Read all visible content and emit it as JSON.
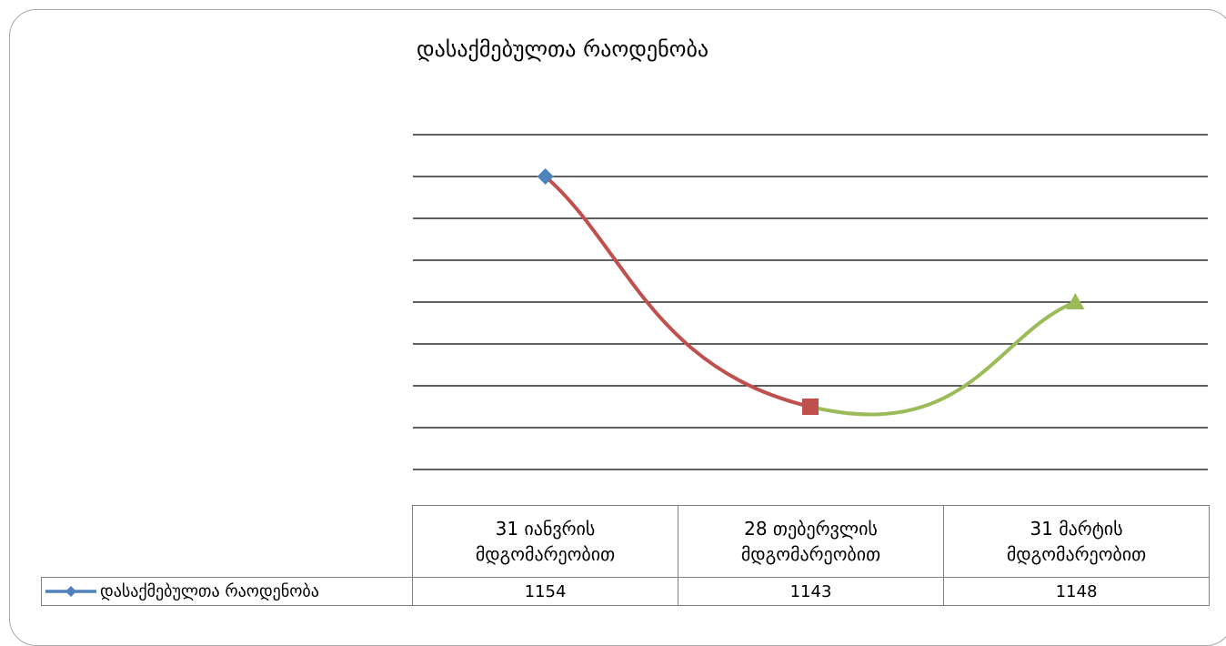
{
  "chart_data": {
    "type": "line",
    "title": "დასაქმებულთა რაოდენობა",
    "categories": [
      "31 იანვრის მდგომარეობით",
      "28 თებერვლის მდგომარეობით",
      "31 მარტის მდგომარეობით"
    ],
    "category_lines": [
      [
        "31 იანვრის",
        "მდგომარეობით"
      ],
      [
        "28 თებერვლის",
        "მდგომარეობით"
      ],
      [
        "31 მარტის",
        "მდგომარეობით"
      ]
    ],
    "series": [
      {
        "name": "დასაქმებულთა რაოდენობა",
        "values": [
          1154,
          1143,
          1148
        ]
      }
    ],
    "ylim": [
      1140,
      1156
    ],
    "grid": true,
    "legend": "data-table",
    "segment_colors": [
      "#c0504d",
      "#9bbb59"
    ],
    "marker_colors": [
      "#4f81bd",
      "#c0504d",
      "#9bbb59"
    ],
    "marker_shapes": [
      "diamond",
      "square",
      "triangle"
    ],
    "legend_color": "#4f81bd",
    "gridline_color": "#000000"
  }
}
